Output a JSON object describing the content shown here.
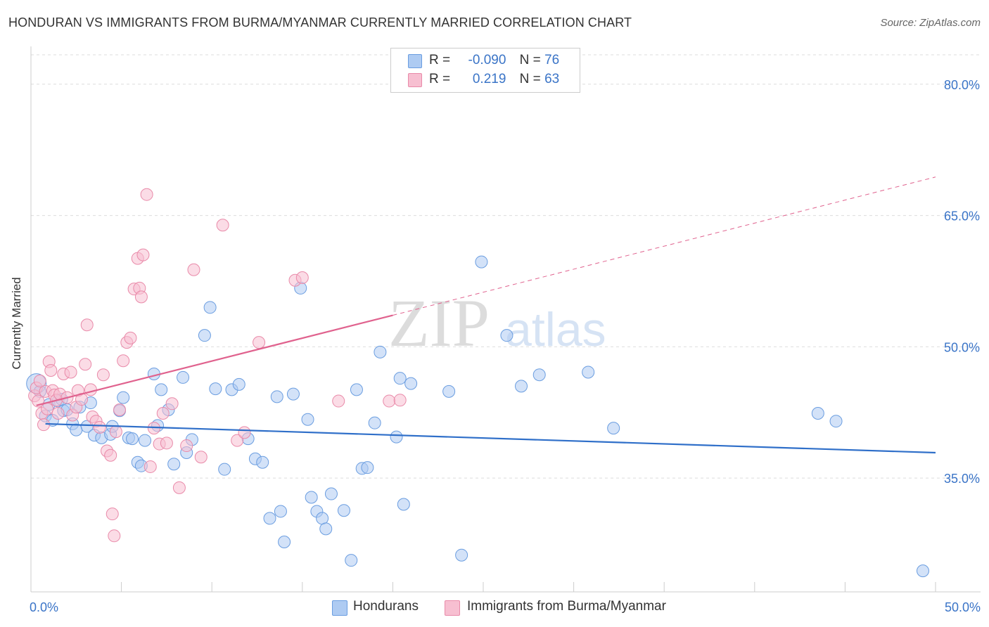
{
  "title": "HONDURAN VS IMMIGRANTS FROM BURMA/MYANMAR CURRENTLY MARRIED CORRELATION CHART",
  "source": "Source: ZipAtlas.com",
  "watermark": {
    "zip": "ZIP",
    "atlas": "atlas"
  },
  "legend_box": {
    "rows": [
      {
        "r_label": "R =",
        "r_value": "-0.090",
        "n_label": "N =",
        "n_value": "76",
        "color": "#aecbf2",
        "border": "#6a9de0"
      },
      {
        "r_label": "R =",
        "r_value": "0.219",
        "n_label": "N =",
        "n_value": "63",
        "color": "#f7bfd1",
        "border": "#e98aa9"
      }
    ]
  },
  "bottom_legend": [
    {
      "label": "Hondurans",
      "color": "#aecbf2",
      "border": "#6a9de0"
    },
    {
      "label": "Immigrants from Burma/Myanmar",
      "color": "#f7bfd1",
      "border": "#e98aa9"
    }
  ],
  "chart_data": {
    "type": "scatter",
    "title": "HONDURAN VS IMMIGRANTS FROM BURMA/MYANMAR CURRENTLY MARRIED CORRELATION CHART",
    "xlabel": "",
    "ylabel": "Currently Married",
    "xlim": [
      0,
      50
    ],
    "ylim": [
      22,
      84
    ],
    "x_tick_labels": [
      {
        "value": 0,
        "label": "0.0%"
      },
      {
        "value": 50,
        "label": "50.0%"
      }
    ],
    "y_tick_labels": [
      {
        "value": 35,
        "label": "35.0%"
      },
      {
        "value": 50,
        "label": "50.0%"
      },
      {
        "value": 65,
        "label": "65.0%"
      },
      {
        "value": 80,
        "label": "80.0%"
      }
    ],
    "series": [
      {
        "name": "Hondurans",
        "color": "#6a9de0",
        "fill": "#aecbf2",
        "trend": {
          "x0": 0.8,
          "y0": 41.2,
          "x1": 50,
          "y1": 37.9,
          "dashed_to": null,
          "color": "#2f6fc9"
        },
        "points": [
          [
            0.3,
            45.8
          ],
          [
            0.5,
            44.9
          ],
          [
            0.8,
            42.1
          ],
          [
            1.0,
            43.4
          ],
          [
            1.2,
            41.6
          ],
          [
            1.5,
            43.8
          ],
          [
            1.7,
            44.0
          ],
          [
            1.8,
            42.7
          ],
          [
            2.0,
            42.8
          ],
          [
            2.3,
            41.2
          ],
          [
            2.5,
            40.5
          ],
          [
            2.7,
            43.1
          ],
          [
            3.1,
            40.9
          ],
          [
            3.3,
            43.6
          ],
          [
            3.5,
            39.9
          ],
          [
            3.9,
            39.6
          ],
          [
            4.4,
            40.0
          ],
          [
            4.5,
            40.9
          ],
          [
            4.9,
            42.7
          ],
          [
            5.1,
            44.2
          ],
          [
            5.4,
            39.6
          ],
          [
            5.6,
            39.5
          ],
          [
            5.9,
            36.8
          ],
          [
            6.1,
            36.4
          ],
          [
            6.3,
            39.3
          ],
          [
            6.8,
            46.9
          ],
          [
            7.0,
            41.0
          ],
          [
            7.2,
            45.1
          ],
          [
            7.6,
            42.8
          ],
          [
            7.9,
            36.6
          ],
          [
            8.4,
            46.5
          ],
          [
            8.6,
            37.9
          ],
          [
            8.9,
            39.4
          ],
          [
            9.6,
            51.3
          ],
          [
            9.9,
            54.5
          ],
          [
            10.2,
            45.2
          ],
          [
            10.7,
            36.0
          ],
          [
            11.1,
            45.1
          ],
          [
            11.5,
            45.7
          ],
          [
            12.0,
            39.5
          ],
          [
            12.4,
            37.2
          ],
          [
            12.8,
            36.8
          ],
          [
            13.2,
            30.4
          ],
          [
            13.6,
            44.3
          ],
          [
            13.8,
            31.2
          ],
          [
            14.0,
            27.7
          ],
          [
            14.5,
            44.6
          ],
          [
            14.9,
            56.7
          ],
          [
            15.3,
            41.7
          ],
          [
            15.5,
            32.8
          ],
          [
            15.8,
            31.2
          ],
          [
            16.1,
            30.4
          ],
          [
            16.3,
            29.2
          ],
          [
            16.6,
            33.2
          ],
          [
            17.3,
            31.3
          ],
          [
            17.7,
            25.6
          ],
          [
            18.0,
            45.1
          ],
          [
            18.3,
            36.1
          ],
          [
            18.6,
            36.2
          ],
          [
            19.0,
            41.3
          ],
          [
            19.3,
            49.4
          ],
          [
            20.2,
            39.7
          ],
          [
            20.4,
            46.4
          ],
          [
            20.6,
            32.0
          ],
          [
            21.0,
            45.8
          ],
          [
            23.1,
            44.9
          ],
          [
            23.8,
            26.2
          ],
          [
            24.9,
            59.7
          ],
          [
            26.3,
            51.3
          ],
          [
            27.1,
            45.5
          ],
          [
            28.1,
            46.8
          ],
          [
            30.8,
            47.1
          ],
          [
            32.2,
            40.7
          ],
          [
            43.5,
            42.4
          ],
          [
            44.5,
            41.5
          ],
          [
            49.3,
            24.4
          ]
        ]
      },
      {
        "name": "Immigrants from Burma/Myanmar",
        "color": "#e98aa9",
        "fill": "#f7bfd1",
        "trend": {
          "x0": 0.3,
          "y0": 43.3,
          "x1": 20.0,
          "y1": 53.6,
          "dashed_to": {
            "x": 50,
            "y": 69.4
          },
          "color": "#e0628e"
        },
        "points": [
          [
            0.2,
            44.4
          ],
          [
            0.3,
            45.3
          ],
          [
            0.4,
            43.8
          ],
          [
            0.5,
            46.1
          ],
          [
            0.6,
            42.4
          ],
          [
            0.7,
            41.1
          ],
          [
            0.8,
            44.9
          ],
          [
            0.9,
            42.9
          ],
          [
            1.0,
            48.3
          ],
          [
            1.1,
            47.3
          ],
          [
            1.2,
            45.0
          ],
          [
            1.3,
            44.5
          ],
          [
            1.4,
            43.9
          ],
          [
            1.5,
            42.4
          ],
          [
            1.6,
            44.6
          ],
          [
            1.8,
            46.9
          ],
          [
            2.0,
            44.2
          ],
          [
            2.2,
            47.1
          ],
          [
            2.3,
            42.2
          ],
          [
            2.5,
            43.1
          ],
          [
            2.6,
            45.0
          ],
          [
            2.8,
            44.0
          ],
          [
            3.0,
            48.0
          ],
          [
            3.1,
            52.5
          ],
          [
            3.3,
            45.1
          ],
          [
            3.4,
            42.0
          ],
          [
            3.6,
            41.5
          ],
          [
            3.8,
            40.8
          ],
          [
            4.0,
            46.8
          ],
          [
            4.2,
            38.1
          ],
          [
            4.4,
            37.6
          ],
          [
            4.5,
            30.9
          ],
          [
            4.6,
            28.4
          ],
          [
            4.7,
            40.3
          ],
          [
            4.9,
            42.8
          ],
          [
            5.1,
            48.4
          ],
          [
            5.3,
            50.5
          ],
          [
            5.5,
            51.0
          ],
          [
            5.7,
            56.6
          ],
          [
            5.9,
            60.1
          ],
          [
            6.0,
            56.7
          ],
          [
            6.1,
            55.7
          ],
          [
            6.2,
            60.5
          ],
          [
            6.4,
            67.4
          ],
          [
            6.6,
            36.3
          ],
          [
            6.8,
            40.7
          ],
          [
            7.1,
            38.9
          ],
          [
            7.3,
            42.4
          ],
          [
            7.5,
            39.0
          ],
          [
            7.8,
            43.5
          ],
          [
            8.2,
            33.9
          ],
          [
            8.6,
            38.7
          ],
          [
            9.0,
            58.8
          ],
          [
            9.4,
            37.4
          ],
          [
            10.6,
            63.9
          ],
          [
            11.4,
            39.3
          ],
          [
            11.8,
            40.2
          ],
          [
            12.6,
            50.5
          ],
          [
            14.6,
            57.6
          ],
          [
            15.0,
            57.9
          ],
          [
            17.0,
            43.8
          ],
          [
            19.8,
            43.8
          ],
          [
            20.4,
            43.9
          ]
        ]
      }
    ]
  }
}
